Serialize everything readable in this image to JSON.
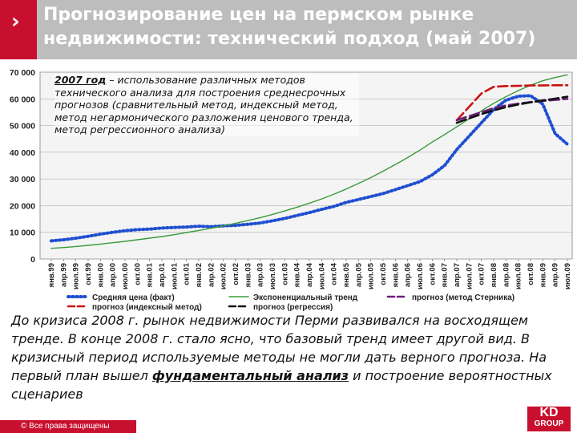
{
  "header": {
    "title": "Прогнозирование цен на пермском рынке недвижимости: технический подход (май 2007)",
    "chevron": "›"
  },
  "note": {
    "lead": "2007 год",
    "text": " – использование различных методов технического анализа для построения среднесрочных прогнозов (сравнительный метод, индексный метод, метод негармонического разложения ценового тренда, метод регрессионного анализа)"
  },
  "bottom_text": {
    "part1": "До кризиса 2008 г. рынок недвижимости Перми развивался на восходящем тренде. В конце 2008 г. стало ясно, что базовый тренд имеет другой вид. В кризисный период используемые методы не могли дать верного прогноза. На первый план вышел ",
    "emphasis": "фундаментальный анализ",
    "part2": " и построение вероятностных сценариев"
  },
  "footer": {
    "copyright": "© Все права защищены"
  },
  "logo": {
    "line1": "KD",
    "line2": "GROUP"
  },
  "colors": {
    "brand_red": "#c8102e",
    "header_gray": "#bdbdbd",
    "avg_blue": "#1f4fd0",
    "trend_green": "#3a9a3a",
    "index_red": "#cc1111",
    "sternik_purple": "#6a1f7a",
    "regression_black": "#111111"
  },
  "chart_data": {
    "type": "line",
    "ylim": [
      0,
      70000
    ],
    "yticks": [
      0,
      10000,
      20000,
      30000,
      40000,
      50000,
      60000,
      70000
    ],
    "ytick_labels": [
      "0",
      "10 000",
      "20 000",
      "30 000",
      "40 000",
      "50 000",
      "60 000",
      "70 000"
    ],
    "x_labels": [
      "янв.99",
      "апр.99",
      "июл.99",
      "окт.99",
      "янв.00",
      "апр.00",
      "июл.00",
      "окт.00",
      "янв.01",
      "апр.01",
      "июл.01",
      "окт.01",
      "янв.02",
      "апр.02",
      "июл.02",
      "окт.02",
      "янв.03",
      "апр.03",
      "июл.03",
      "окт.03",
      "янв.04",
      "апр.04",
      "июл.04",
      "окт.04",
      "янв.05",
      "апр.05",
      "июл.05",
      "окт.05",
      "янв.06",
      "апр.06",
      "июл.06",
      "окт.06",
      "янв.07",
      "апр.07",
      "июл.07",
      "окт.07",
      "янв.08",
      "апр.08",
      "июл.08",
      "окт.08",
      "янв.09",
      "апр.09",
      "июл.09"
    ],
    "series": [
      {
        "name": "Средняя цена (факт)",
        "style": "dotted",
        "color": "#1f4fd0",
        "values": [
          6800,
          7200,
          7800,
          8500,
          9300,
          10000,
          10600,
          11000,
          11200,
          11600,
          11800,
          12000,
          12300,
          12100,
          12400,
          12600,
          13000,
          13500,
          14300,
          15200,
          16300,
          17400,
          18600,
          19700,
          21200,
          22300,
          23400,
          24500,
          26000,
          27500,
          29000,
          31500,
          35000,
          41000,
          46000,
          51000,
          56000,
          59500,
          61000,
          61200,
          58000,
          47000,
          43000
        ]
      },
      {
        "name": "Экспоненциальный тренд",
        "style": "solid",
        "color": "#3a9a3a",
        "values": [
          4000,
          4300,
          4700,
          5100,
          5600,
          6100,
          6600,
          7200,
          7800,
          8400,
          9100,
          9900,
          10700,
          11500,
          12400,
          13400,
          14400,
          15500,
          16700,
          18000,
          19400,
          20900,
          22500,
          24300,
          26200,
          28300,
          30500,
          32900,
          35400,
          38000,
          40800,
          43800,
          46600,
          49500,
          52500,
          55500,
          58300,
          60800,
          63100,
          65100,
          66800,
          68000,
          69000
        ]
      },
      {
        "name": "прогноз (индексный метод)",
        "style": "dashed",
        "color": "#cc1111",
        "x_start_index": 33,
        "values": [
          52000,
          57000,
          62000,
          64500,
          64800,
          64900,
          65000,
          65000,
          65100,
          65100
        ]
      },
      {
        "name": "прогноз (метод Стерника)",
        "style": "dashed",
        "color": "#6a1f7a",
        "x_start_index": 33,
        "values": [
          52000,
          53500,
          55000,
          56500,
          57500,
          58200,
          58800,
          59200,
          59600,
          60000
        ]
      },
      {
        "name": "прогноз (регрессия)",
        "style": "dashed",
        "color": "#111111",
        "x_start_index": 33,
        "values": [
          51000,
          52700,
          54300,
          55700,
          56900,
          57900,
          58700,
          59400,
          60100,
          60800
        ]
      }
    ],
    "legend": [
      {
        "label": "Средняя цена (факт)",
        "series": 0
      },
      {
        "label": "Экспоненциальный тренд",
        "series": 1
      },
      {
        "label": "прогноз (метод Стерника)",
        "series": 3
      },
      {
        "label": "прогноз (индексный метод)",
        "series": 2
      },
      {
        "label": "прогноз (регрессия)",
        "series": 4
      }
    ],
    "grid": true,
    "legend_placement": "bottom"
  }
}
